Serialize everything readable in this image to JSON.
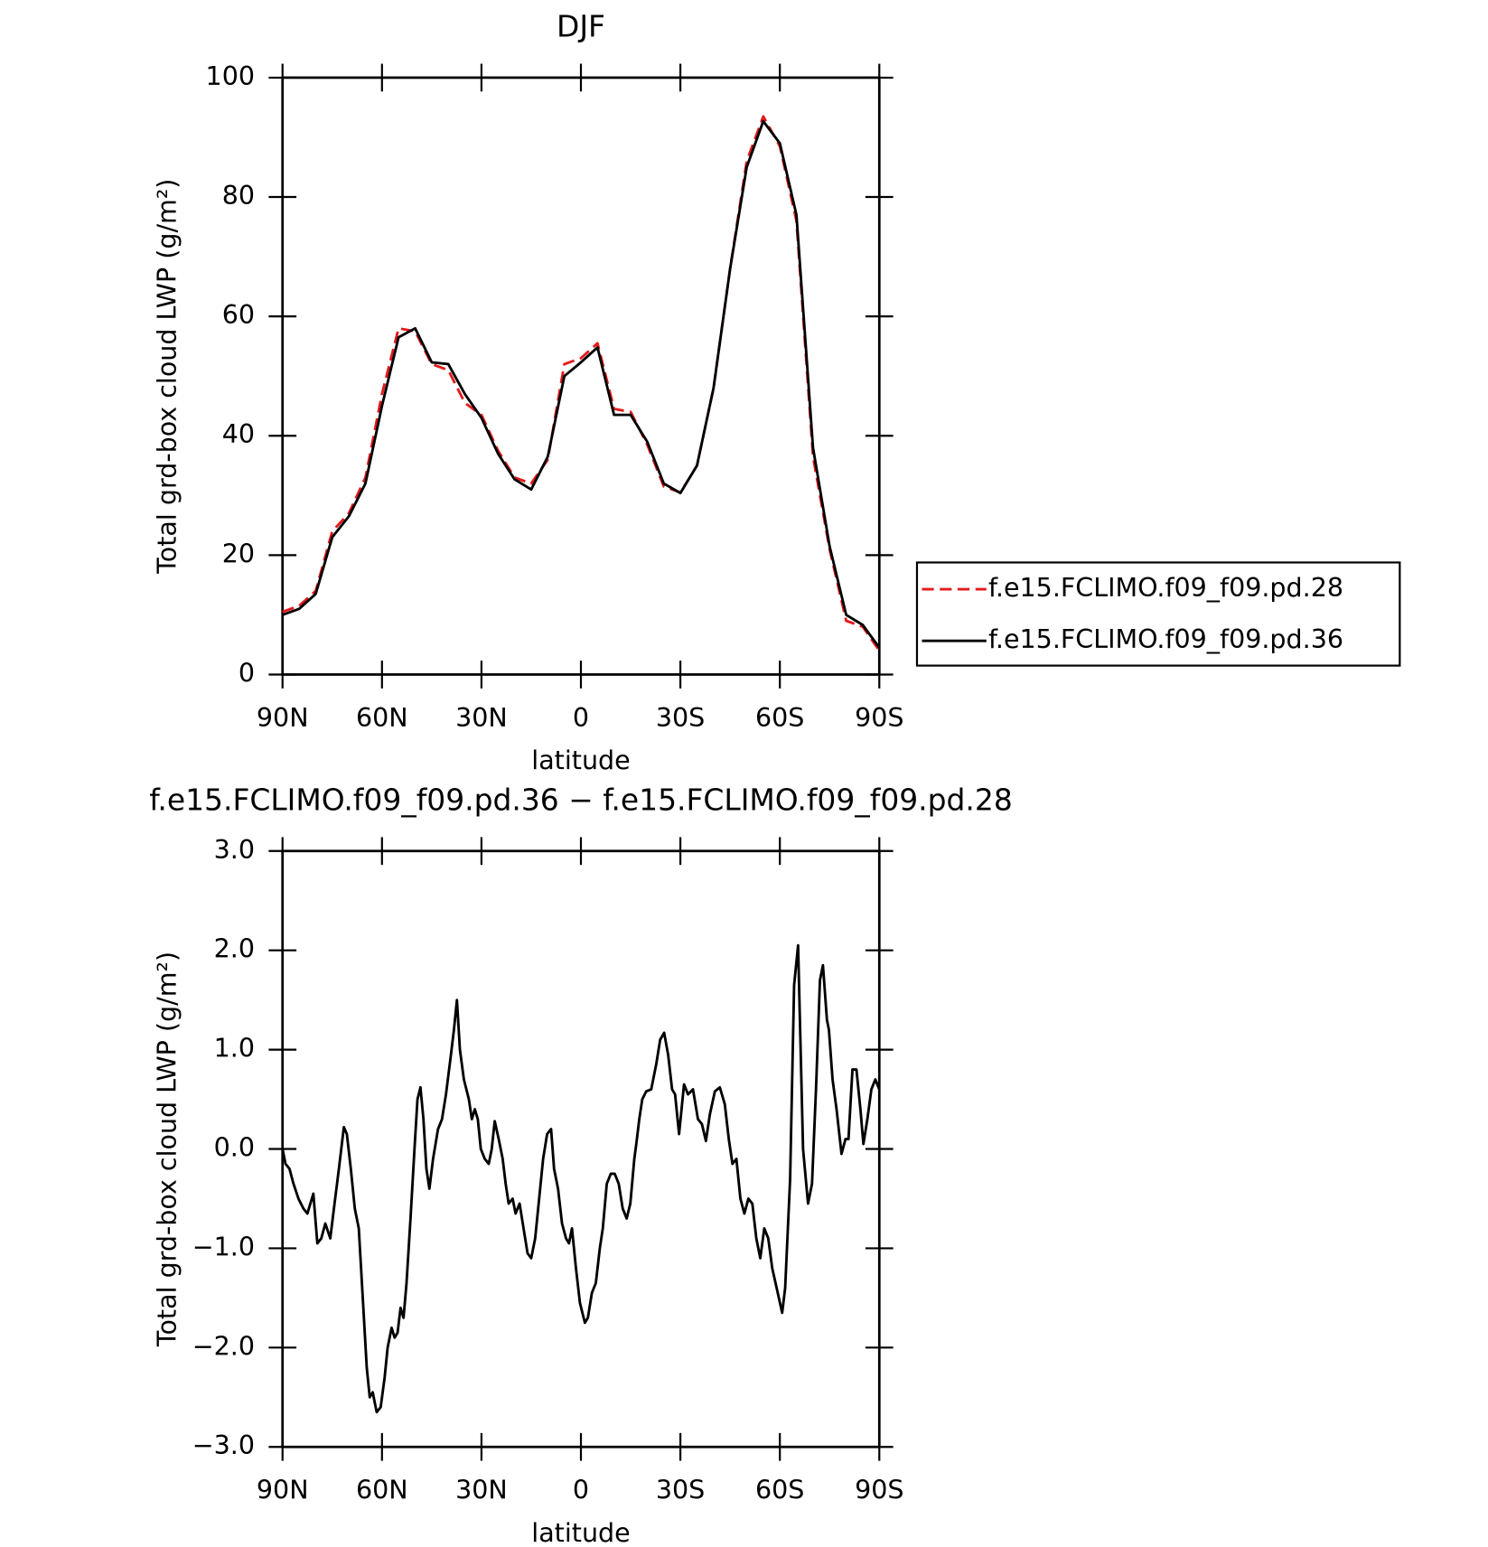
{
  "chart_data": [
    {
      "type": "line",
      "title": "DJF",
      "ylabel": "Total grd-box cloud LWP (g/m²)",
      "xlabel": "latitude",
      "x": [
        90,
        85,
        80,
        75,
        70,
        65,
        60,
        55,
        50,
        45,
        40,
        35,
        30,
        25,
        20,
        15,
        10,
        5,
        0,
        -5,
        -10,
        -15,
        -20,
        -25,
        -30,
        -35,
        -40,
        -45,
        -50,
        -55,
        -60,
        -65,
        -70,
        -75,
        -80,
        -85,
        -90
      ],
      "series": [
        {
          "name": "f.e15.FCLIMO.f09_f09.pd.28",
          "color": "#e41a1c",
          "dash": true,
          "values": [
            10.5,
            11.5,
            14,
            24,
            27,
            33,
            47,
            58,
            57.5,
            52,
            51,
            45.5,
            43.5,
            37.5,
            33,
            32,
            36,
            52,
            53,
            55.5,
            44.5,
            44,
            38.5,
            31.5,
            30.5,
            35,
            48,
            68,
            86,
            93.5,
            88.5,
            76,
            36.5,
            21,
            9,
            8,
            4
          ]
        },
        {
          "name": "f.e15.FCLIMO.f09_f09.pd.36",
          "color": "#000000",
          "dash": false,
          "values": [
            10,
            11,
            13.5,
            23,
            26.5,
            32,
            45,
            56.5,
            58,
            52.3,
            52,
            47,
            43,
            37,
            32.7,
            31,
            36.5,
            50,
            52.3,
            54.8,
            43.5,
            43.5,
            39,
            32,
            30.4,
            35,
            48,
            68,
            85,
            92.7,
            89,
            77,
            38,
            21.5,
            10,
            8.3,
            4.5
          ]
        }
      ],
      "xlim": [
        90,
        -90
      ],
      "xticks": [
        {
          "value": 90,
          "label": "90N"
        },
        {
          "value": 60,
          "label": "60N"
        },
        {
          "value": 30,
          "label": "30N"
        },
        0,
        {
          "value": -30,
          "label": "30S"
        },
        {
          "value": -60,
          "label": "60S"
        },
        {
          "value": -90,
          "label": "90S"
        }
      ],
      "ylim": [
        0,
        100
      ],
      "yticks": [
        0,
        20,
        40,
        60,
        80,
        100
      ],
      "legend": "outside right"
    },
    {
      "type": "line",
      "title": "f.e15.FCLIMO.f09_f09.pd.36 − f.e15.FCLIMO.f09_f09.pd.28",
      "ylabel": "Total grd-box cloud LWP (g/m²)",
      "xlabel": "latitude",
      "x": [
        90,
        89.1,
        87.9,
        86.7,
        85.2,
        83.7,
        82.5,
        81.6,
        80.7,
        79.5,
        78.3,
        77.1,
        75.6,
        74.5,
        73,
        71.5,
        70.6,
        69.4,
        68.2,
        67,
        65.8,
        64.6,
        63.7,
        62.8,
        61.6,
        60.4,
        59.2,
        58.3,
        57.1,
        56.2,
        55.3,
        54.4,
        53.5,
        52.6,
        51.4,
        50.2,
        49.3,
        48.4,
        47.5,
        46.6,
        45.7,
        44.6,
        43.1,
        41.9,
        40.7,
        39.2,
        38.3,
        37.4,
        36.5,
        35.3,
        33.8,
        32.9,
        32,
        31.1,
        30.2,
        29,
        27.8,
        26.9,
        26,
        24.8,
        23.6,
        22.7,
        21.8,
        20.6,
        19.7,
        18.5,
        17.3,
        16.1,
        15,
        13.8,
        12.6,
        11.4,
        10.2,
        9,
        8.1,
        6.9,
        5.7,
        4.5,
        3.6,
        2.7,
        1.5,
        0.3,
        -1.2,
        -2.1,
        -3.3,
        -4.5,
        -5.7,
        -6.6,
        -7.8,
        -9,
        -10.2,
        -11.4,
        -12.6,
        -13.8,
        -14.9,
        -16.1,
        -16.7,
        -17.6,
        -18.5,
        -19.7,
        -21.2,
        -22.7,
        -23.9,
        -25.1,
        -26.3,
        -27.5,
        -28.4,
        -29.6,
        -31.1,
        -32.3,
        -33.8,
        -35.3,
        -36.5,
        -37.7,
        -38.9,
        -40.4,
        -41.9,
        -43.4,
        -44.6,
        -45.7,
        -46.9,
        -48.1,
        -49.3,
        -50.5,
        -51.7,
        -52.9,
        -54.1,
        -55.3,
        -56.5,
        -57.7,
        -60.7,
        -61.6,
        -63.1,
        -64.3,
        -65.5,
        -67,
        -68.5,
        -69.7,
        -70.9,
        -72.1,
        -73,
        -74.2,
        -74.8,
        -75.9,
        -77.1,
        -78.6,
        -79.8,
        -80.7,
        -81.9,
        -83.1,
        -84.3,
        -85.2,
        -86.4,
        -87.6,
        -88.8,
        -90
      ],
      "series": [
        {
          "color": "#000000",
          "dash": false,
          "values": [
            0,
            -0.15,
            -0.2,
            -0.35,
            -0.5,
            -0.6,
            -0.65,
            -0.55,
            -0.45,
            -0.95,
            -0.9,
            -0.75,
            -0.9,
            -0.6,
            -0.2,
            0.22,
            0.15,
            -0.2,
            -0.6,
            -0.8,
            -1.5,
            -2.2,
            -2.5,
            -2.45,
            -2.65,
            -2.6,
            -2.3,
            -2,
            -1.8,
            -1.9,
            -1.85,
            -1.6,
            -1.7,
            -1.35,
            -0.7,
            0,
            0.5,
            0.62,
            0.3,
            -0.2,
            -0.4,
            -0.1,
            0.2,
            0.3,
            0.55,
            0.95,
            1.2,
            1.5,
            1,
            0.7,
            0.5,
            0.3,
            0.4,
            0.3,
            0,
            -0.1,
            -0.15,
            0,
            0.28,
            0.1,
            -0.1,
            -0.35,
            -0.55,
            -0.5,
            -0.65,
            -0.55,
            -0.8,
            -1.05,
            -1.1,
            -0.9,
            -0.5,
            -0.1,
            0.15,
            0.2,
            -0.2,
            -0.4,
            -0.75,
            -0.9,
            -0.95,
            -0.8,
            -1.2,
            -1.55,
            -1.75,
            -1.7,
            -1.45,
            -1.35,
            -1,
            -0.8,
            -0.35,
            -0.25,
            -0.25,
            -0.35,
            -0.6,
            -0.7,
            -0.55,
            -0.1,
            0.05,
            0.3,
            0.5,
            0.58,
            0.6,
            0.85,
            1.1,
            1.17,
            0.95,
            0.6,
            0.55,
            0.15,
            0.65,
            0.55,
            0.6,
            0.3,
            0.25,
            0.08,
            0.35,
            0.58,
            0.62,
            0.45,
            0.1,
            -0.15,
            -0.1,
            -0.5,
            -0.65,
            -0.5,
            -0.55,
            -0.9,
            -1.1,
            -0.8,
            -0.9,
            -1.2,
            -1.65,
            -1.4,
            -0.3,
            1.65,
            2.05,
            0,
            -0.55,
            -0.35,
            0.6,
            1.7,
            1.85,
            1.3,
            1.2,
            0.7,
            0.4,
            -0.05,
            0.1,
            0.1,
            0.8,
            0.8,
            0.4,
            0.05,
            0.3,
            0.6,
            0.7,
            0.6
          ]
        }
      ],
      "xlim": [
        90,
        -90
      ],
      "xticks": [
        {
          "value": 90,
          "label": "90N"
        },
        {
          "value": 60,
          "label": "60N"
        },
        {
          "value": 30,
          "label": "30N"
        },
        0,
        {
          "value": -30,
          "label": "30S"
        },
        {
          "value": -60,
          "label": "60S"
        },
        {
          "value": -90,
          "label": "90S"
        }
      ],
      "ylim": [
        -3,
        3
      ],
      "yticks": [
        {
          "value": -3,
          "label": "−3.0"
        },
        {
          "value": -2,
          "label": "−2.0"
        },
        {
          "value": -1,
          "label": "−1.0"
        },
        {
          "value": 0,
          "label": "0.0"
        },
        {
          "value": 1,
          "label": "1.0"
        },
        {
          "value": 2,
          "label": "2.0"
        },
        {
          "value": 3,
          "label": "3.0"
        }
      ]
    }
  ]
}
